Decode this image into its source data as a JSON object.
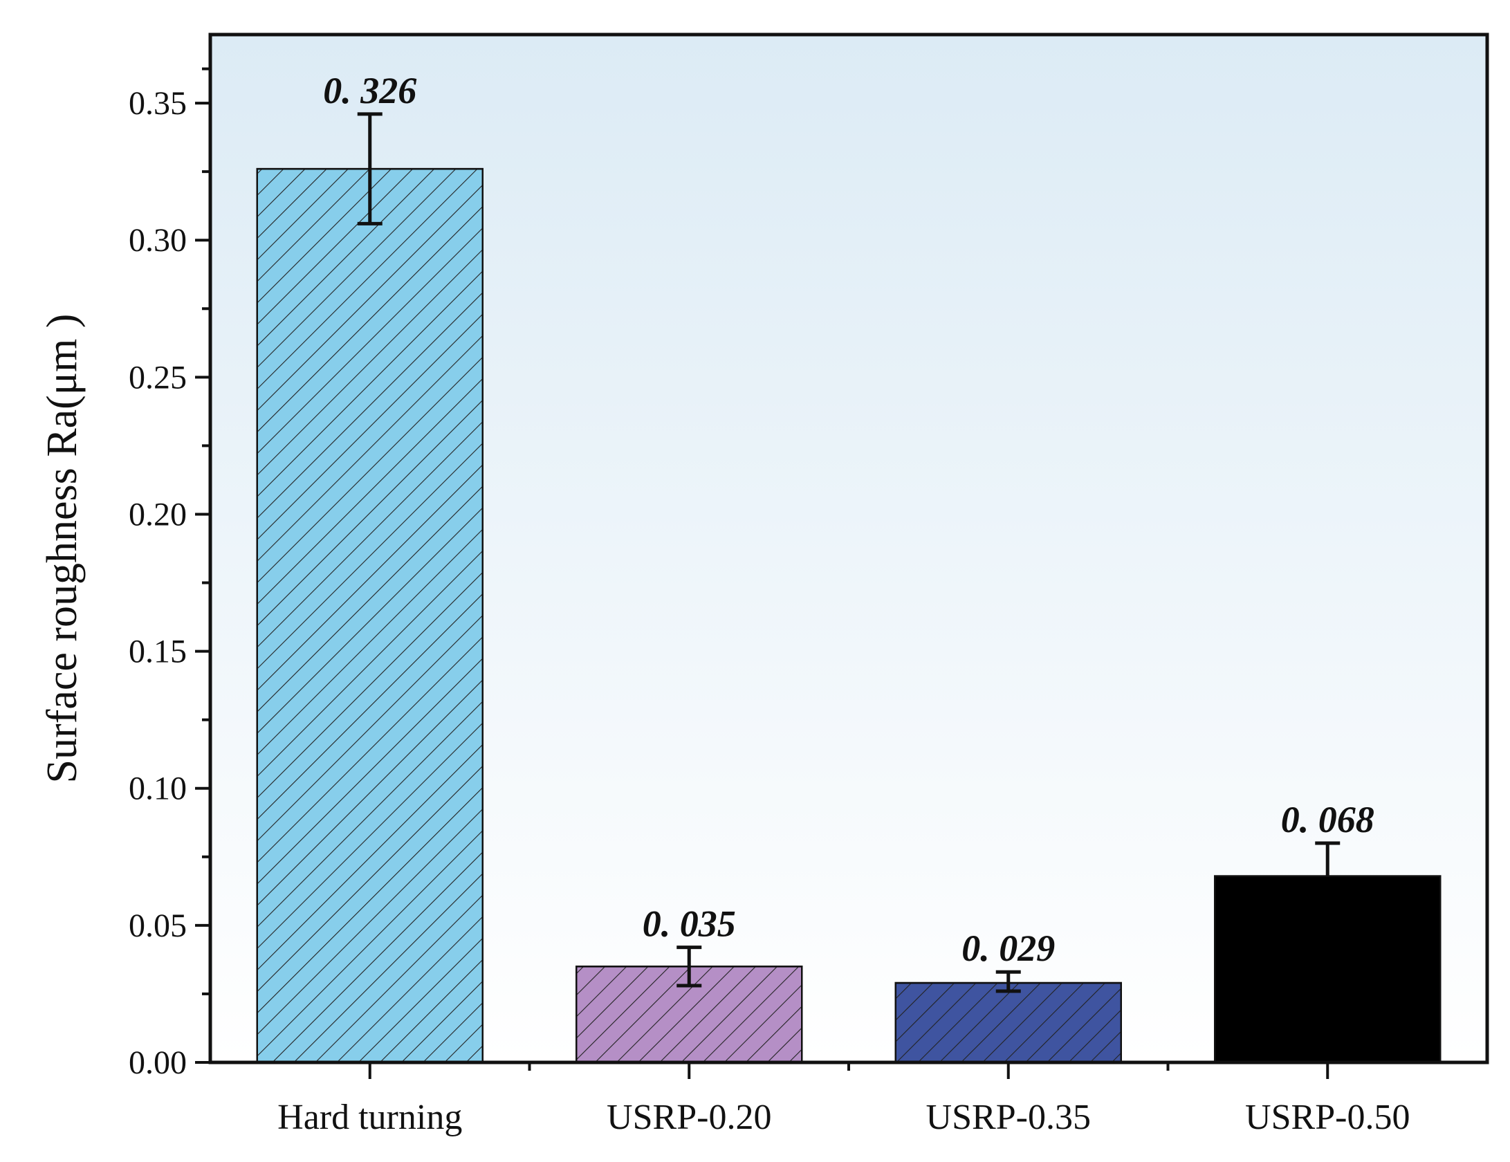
{
  "chart_data": {
    "type": "bar",
    "title": "",
    "xlabel": "",
    "ylabel": "Surface roughness Ra(μm )",
    "ylim": [
      0,
      0.375
    ],
    "yticks": [
      0.0,
      0.05,
      0.1,
      0.15,
      0.2,
      0.25,
      0.3,
      0.35
    ],
    "ytick_labels": [
      "0.00",
      "0.05",
      "0.10",
      "0.15",
      "0.20",
      "0.25",
      "0.30",
      "0.35"
    ],
    "categories": [
      "Hard turning",
      "USRP-0.20",
      "USRP-0.35",
      "USRP-0.50"
    ],
    "values": [
      0.326,
      0.035,
      0.029,
      0.068
    ],
    "value_labels": [
      "0. 326",
      "0. 035",
      "0. 029",
      "0. 068"
    ],
    "error_low": [
      0.306,
      0.028,
      0.026,
      0.068
    ],
    "error_high": [
      0.346,
      0.042,
      0.033,
      0.08
    ],
    "bar_colors": [
      "#87CEEB",
      "#B58FC6",
      "#3F54A0",
      "#000000"
    ],
    "bar_hatch": [
      true,
      true,
      true,
      false
    ],
    "background_gradient": [
      "#dcebf5",
      "#ffffff"
    ],
    "grid": false,
    "legend": "none"
  }
}
